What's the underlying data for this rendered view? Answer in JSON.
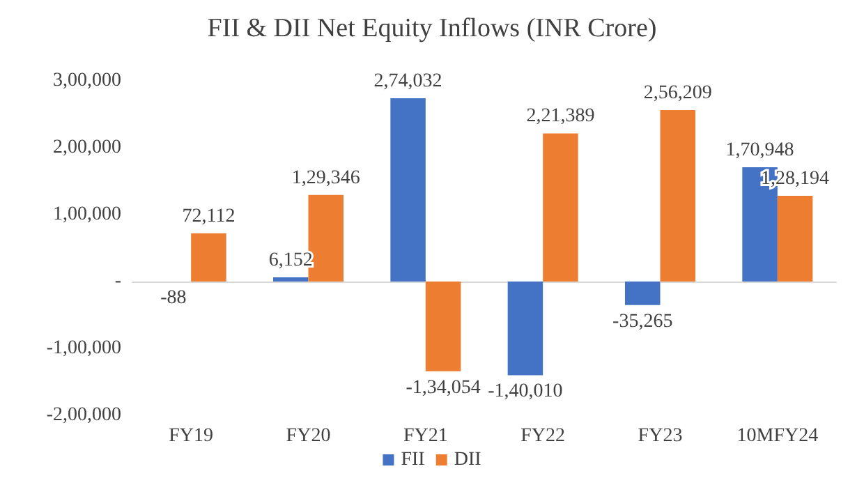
{
  "chart_data": {
    "type": "bar",
    "title": "FII & DII Net Equity Inflows (INR Crore)",
    "categories": [
      "FY19",
      "FY20",
      "FY21",
      "FY22",
      "FY23",
      "10MFY24"
    ],
    "series": [
      {
        "name": "FII",
        "color": "#4472c4",
        "values": [
          -88,
          6152,
          274032,
          -140010,
          -35265,
          170948
        ],
        "value_labels": [
          "-88",
          "6,152",
          "2,74,032",
          "-1,40,010",
          "-35,265",
          "1,70,948"
        ]
      },
      {
        "name": "DII",
        "color": "#ed7d31",
        "values": [
          72112,
          129346,
          -134054,
          221389,
          256209,
          128194
        ],
        "value_labels": [
          "72,112",
          "1,29,346",
          "-1,34,054",
          "2,21,389",
          "2,56,209",
          "1,28,194"
        ]
      }
    ],
    "ylim": [
      -200000,
      300000
    ],
    "yticks": [
      {
        "value": -200000,
        "label": "-2,00,000"
      },
      {
        "value": -100000,
        "label": "-1,00,000"
      },
      {
        "value": 0,
        "label": "-"
      },
      {
        "value": 100000,
        "label": "1,00,000"
      },
      {
        "value": 200000,
        "label": "2,00,000"
      },
      {
        "value": 300000,
        "label": "3,00,000"
      }
    ],
    "legend": "bottom"
  }
}
